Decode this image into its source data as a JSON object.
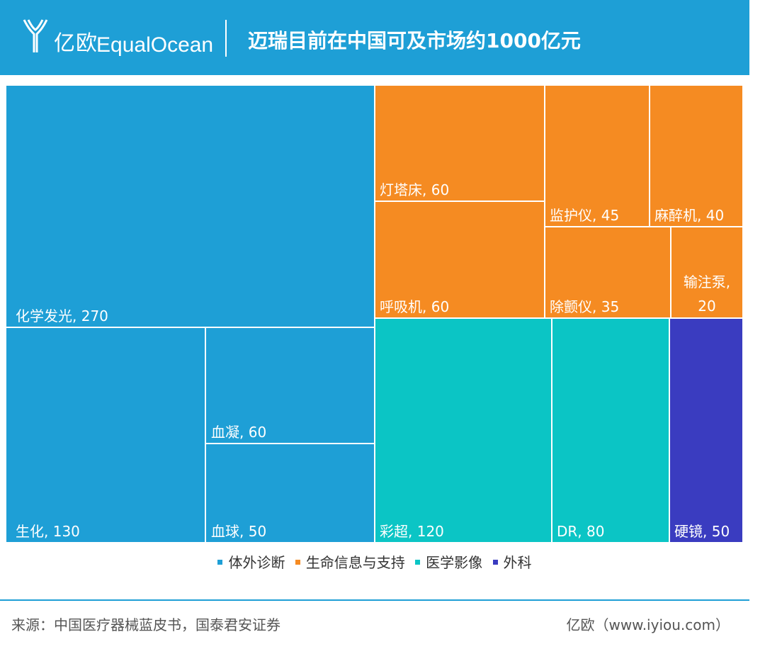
{
  "header": {
    "brand_cn": "亿欧",
    "brand_en": "EqualOcean",
    "title": "迈瑞目前在中国可及市场约1000亿元"
  },
  "colors": {
    "header_bg": "#1e9fd6",
    "体外诊断": "#1e9fd6",
    "生命信息与支持": "#f58b22",
    "医学影像": "#0bc5c5",
    "外科": "#3a3cc0"
  },
  "legend": [
    {
      "label": "体外诊断",
      "color": "#1e9fd6"
    },
    {
      "label": "生命信息与支持",
      "color": "#f58b22"
    },
    {
      "label": "医学影像",
      "color": "#0bc5c5"
    },
    {
      "label": "外科",
      "color": "#3a3cc0"
    }
  ],
  "chart_data": {
    "type": "treemap",
    "title": "迈瑞目前在中国可及市场约1000亿元",
    "unit": "亿元",
    "total": 1000,
    "groups": [
      {
        "name": "体外诊断",
        "items": [
          {
            "label": "化学发光, 270",
            "name": "化学发光",
            "value": 270
          },
          {
            "label": "生化, 130",
            "name": "生化",
            "value": 130
          },
          {
            "label": "血凝, 60",
            "name": "血凝",
            "value": 60
          },
          {
            "label": "血球, 50",
            "name": "血球",
            "value": 50
          }
        ]
      },
      {
        "name": "生命信息与支持",
        "items": [
          {
            "label": "灯塔床, 60",
            "name": "灯塔床",
            "value": 60
          },
          {
            "label": "呼吸机, 60",
            "name": "呼吸机",
            "value": 60
          },
          {
            "label": "监护仪, 45",
            "name": "监护仪",
            "value": 45
          },
          {
            "label": "麻醉机, 40",
            "name": "麻醉机",
            "value": 40
          },
          {
            "label": "除颤仪, 35",
            "name": "除颤仪",
            "value": 35
          },
          {
            "label": "输注泵, 20",
            "name": "输注泵",
            "value": 20
          }
        ]
      },
      {
        "name": "医学影像",
        "items": [
          {
            "label": "彩超, 120",
            "name": "彩超",
            "value": 120
          },
          {
            "label": "DR, 80",
            "name": "DR",
            "value": 80
          }
        ]
      },
      {
        "name": "外科",
        "items": [
          {
            "label": "硬镜, 50",
            "name": "硬镜",
            "value": 50
          }
        ]
      }
    ]
  },
  "footer": {
    "source": "来源：中国医疗器械蓝皮书，国泰君安证券",
    "credit": "亿欧（www.iyiou.com）"
  }
}
